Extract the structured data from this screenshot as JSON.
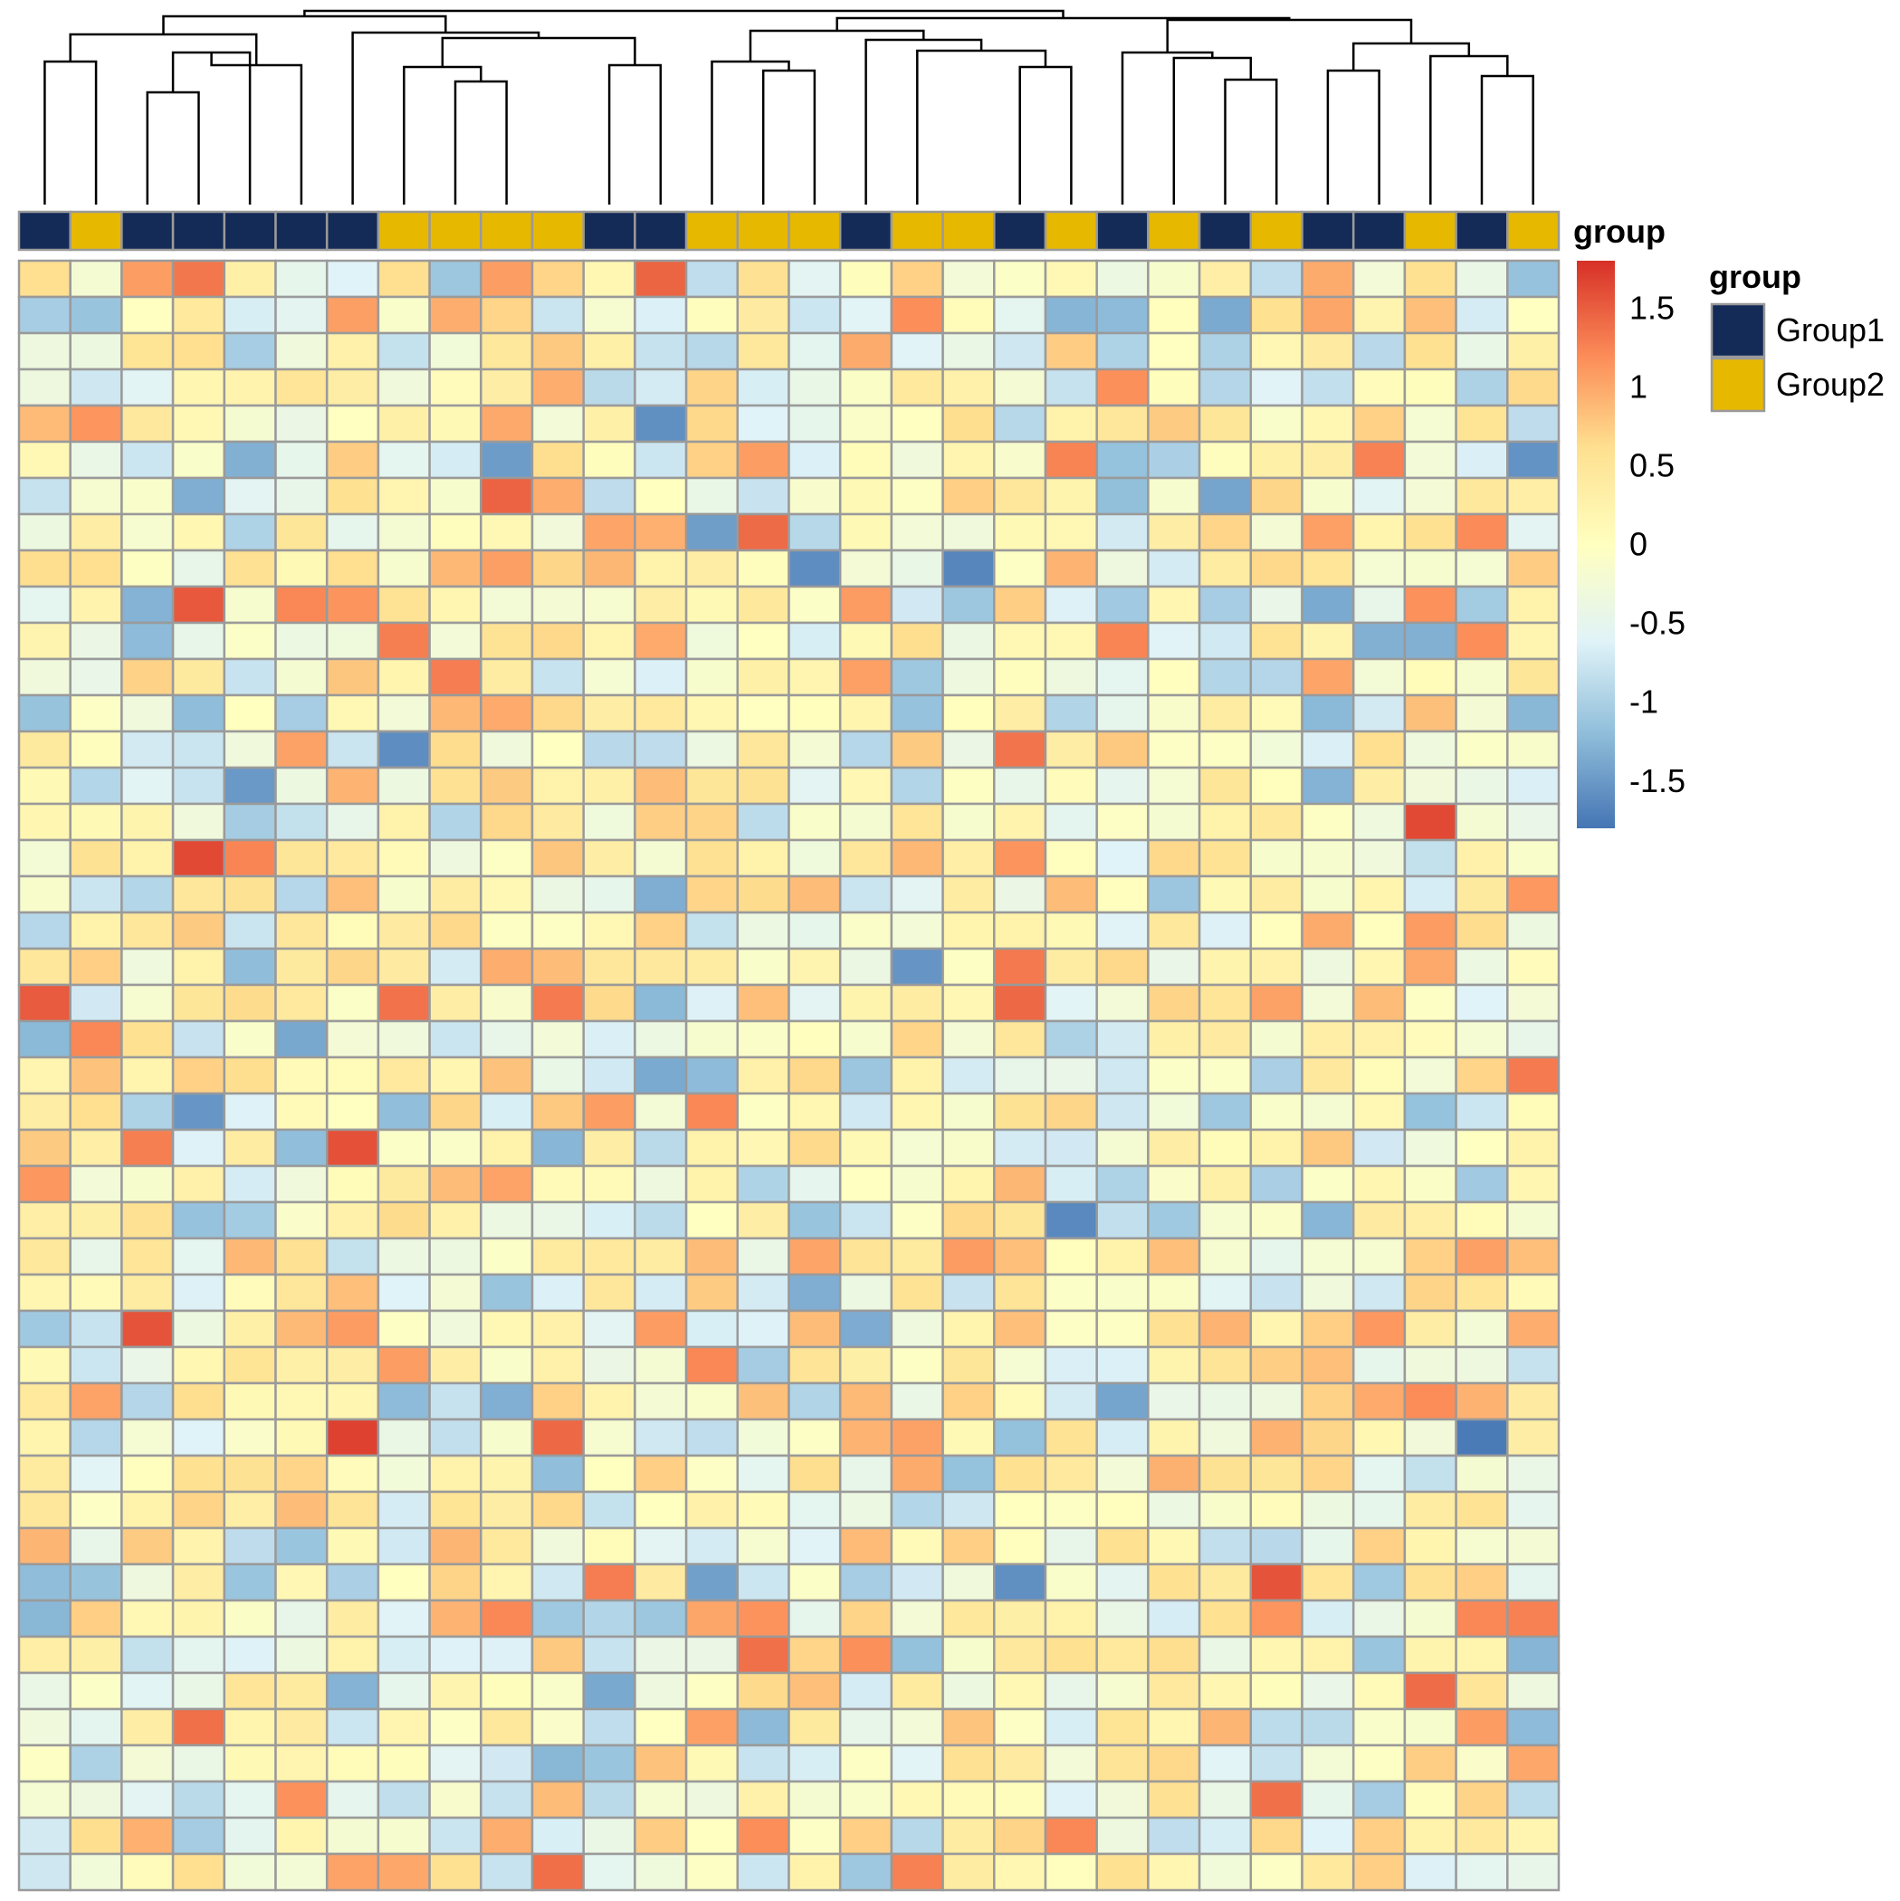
{
  "chart_data": {
    "type": "heatmap",
    "rows": 45,
    "cols": 30,
    "values_note": "",
    "values": [],
    "annotation": {
      "title": "group",
      "column_groups": [
        "Group1",
        "Group2",
        "Group1",
        "Group1",
        "Group1",
        "Group1",
        "Group1",
        "Group2",
        "Group2",
        "Group2",
        "Group2",
        "Group1",
        "Group1",
        "Group2",
        "Group2",
        "Group2",
        "Group1",
        "Group2",
        "Group2",
        "Group1",
        "Group2",
        "Group1",
        "Group2",
        "Group1",
        "Group2",
        "Group1",
        "Group1",
        "Group2",
        "Group1",
        "Group2"
      ],
      "legend": [
        {
          "label": "Group1",
          "color": "#142a57"
        },
        {
          "label": "Group2",
          "color": "#e6b800"
        }
      ]
    },
    "colorbar": {
      "ticks": [
        "1.5",
        "1",
        "0.5",
        "0",
        "-0.5",
        "-1",
        "-1.5"
      ],
      "tick_values": [
        1.5,
        1,
        0.5,
        0,
        -0.5,
        -1,
        -1.5
      ],
      "range": [
        -1.8,
        1.8
      ],
      "palette": [
        "#4575b4",
        "#91bfdb",
        "#e0f3f8",
        "#ffffbf",
        "#fee090",
        "#fc8d59",
        "#d73027"
      ]
    },
    "dendrogram": "hierarchical clustering of columns"
  }
}
